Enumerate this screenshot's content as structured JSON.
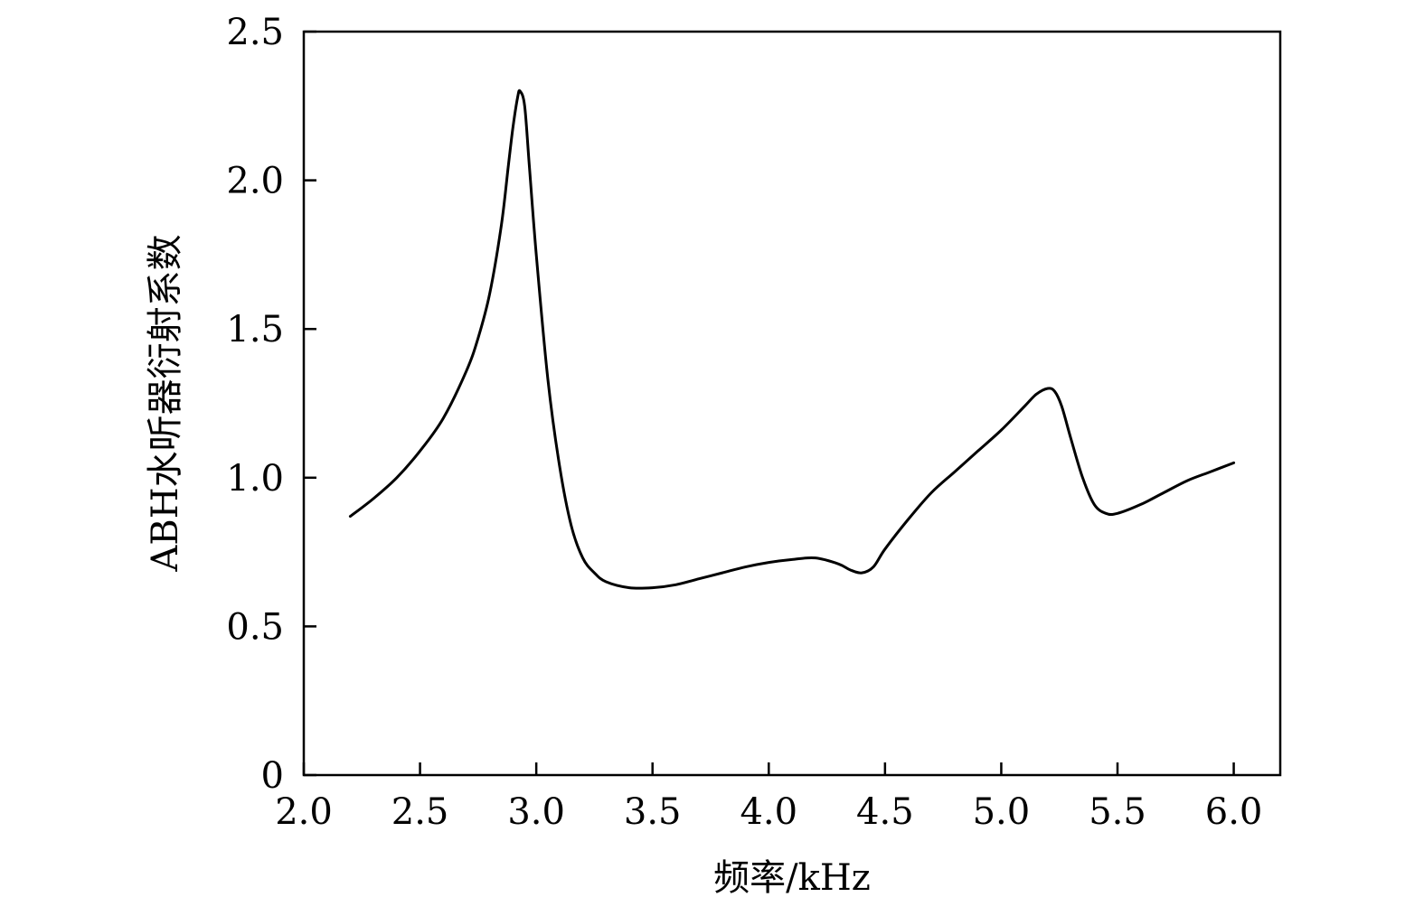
{
  "chart_data": {
    "type": "line",
    "title": "",
    "xlabel": "频率/kHz",
    "ylabel": "ABH水听器衍射系数",
    "xlim": [
      2.0,
      6.2
    ],
    "ylim": [
      0,
      2.5
    ],
    "grid": false,
    "legend": "none",
    "line_color": "#000000",
    "xticks": [
      {
        "value": 2.0,
        "label": "2.0"
      },
      {
        "value": 2.5,
        "label": "2.5"
      },
      {
        "value": 3.0,
        "label": "3.0"
      },
      {
        "value": 3.5,
        "label": "3.5"
      },
      {
        "value": 4.0,
        "label": "4.0"
      },
      {
        "value": 4.5,
        "label": "4.5"
      },
      {
        "value": 5.0,
        "label": "5.0"
      },
      {
        "value": 5.5,
        "label": "5.5"
      },
      {
        "value": 6.0,
        "label": "6.0"
      }
    ],
    "yticks": [
      {
        "value": 0,
        "label": "0"
      },
      {
        "value": 0.5,
        "label": "0.5"
      },
      {
        "value": 1.0,
        "label": "1.0"
      },
      {
        "value": 1.5,
        "label": "1.5"
      },
      {
        "value": 2.0,
        "label": "2.0"
      },
      {
        "value": 2.5,
        "label": "2.5"
      }
    ],
    "series": [
      {
        "x": [
          2.2,
          2.3,
          2.4,
          2.5,
          2.6,
          2.7,
          2.75,
          2.8,
          2.85,
          2.88,
          2.9,
          2.92,
          2.93,
          2.95,
          2.97,
          3.0,
          3.05,
          3.1,
          3.15,
          3.2,
          3.25,
          3.3,
          3.4,
          3.5,
          3.6,
          3.7,
          3.8,
          3.9,
          4.0,
          4.1,
          4.2,
          4.3,
          4.35,
          4.4,
          4.45,
          4.5,
          4.6,
          4.7,
          4.8,
          4.9,
          5.0,
          5.1,
          5.15,
          5.2,
          5.23,
          5.26,
          5.3,
          5.35,
          5.4,
          5.45,
          5.5,
          5.6,
          5.7,
          5.8,
          5.9,
          6.0
        ],
        "y": [
          0.87,
          0.93,
          1.0,
          1.09,
          1.2,
          1.36,
          1.47,
          1.62,
          1.85,
          2.05,
          2.18,
          2.28,
          2.3,
          2.25,
          2.05,
          1.75,
          1.33,
          1.04,
          0.84,
          0.73,
          0.68,
          0.65,
          0.63,
          0.63,
          0.64,
          0.66,
          0.68,
          0.7,
          0.715,
          0.725,
          0.73,
          0.71,
          0.69,
          0.68,
          0.7,
          0.76,
          0.86,
          0.95,
          1.02,
          1.09,
          1.16,
          1.24,
          1.28,
          1.3,
          1.29,
          1.24,
          1.13,
          1.0,
          0.91,
          0.88,
          0.88,
          0.91,
          0.95,
          0.99,
          1.02,
          1.05
        ]
      }
    ]
  }
}
